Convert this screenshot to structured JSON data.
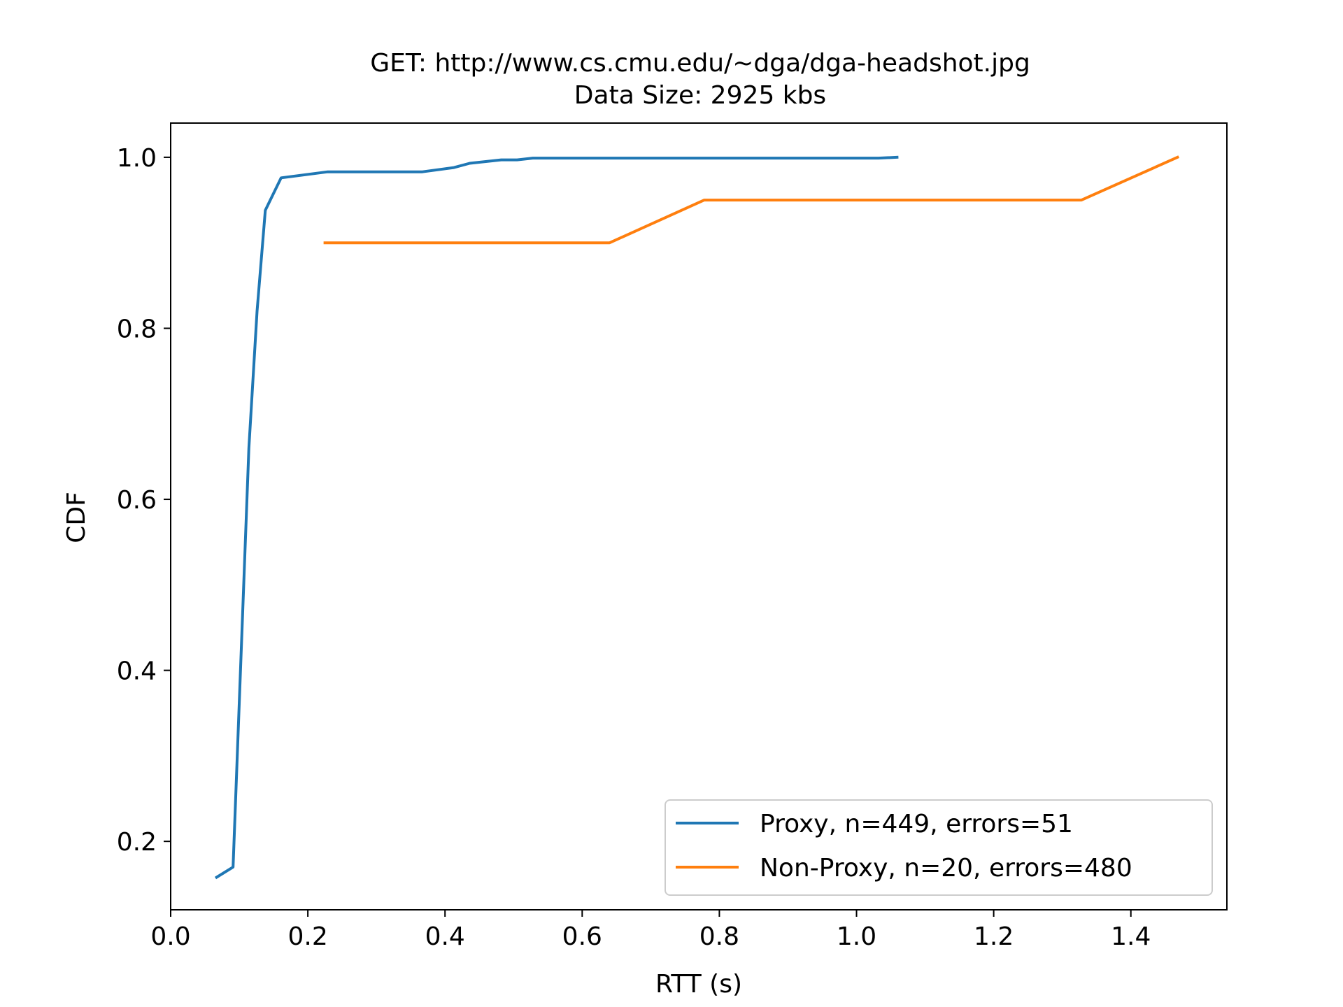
{
  "chart_data": {
    "type": "line",
    "title": "GET: http://www.cs.cmu.edu/~dga/dga-headshot.jpg",
    "subtitle": "Data Size: 2925 kbs",
    "xlabel": "RTT (s)",
    "ylabel": "CDF",
    "xlim": [
      0.0,
      1.54
    ],
    "ylim": [
      0.12,
      1.04
    ],
    "xticks": [
      "0.0",
      "0.2",
      "0.4",
      "0.6",
      "0.8",
      "1.0",
      "1.2",
      "1.4"
    ],
    "yticks": [
      "0.2",
      "0.4",
      "0.6",
      "0.8",
      "1.0"
    ],
    "grid": false,
    "legend_position": "lower-right",
    "series": [
      {
        "name": "Proxy, n=449, errors=51",
        "color": "#1f77b4",
        "x": [
          0.067,
          0.091,
          0.114,
          0.126,
          0.138,
          0.161,
          0.229,
          0.367,
          0.413,
          0.436,
          0.482,
          0.505,
          0.528,
          1.032,
          1.059
        ],
        "y": [
          0.158,
          0.17,
          0.66,
          0.82,
          0.938,
          0.976,
          0.983,
          0.983,
          0.988,
          0.993,
          0.997,
          0.997,
          0.999,
          0.999,
          1.0
        ]
      },
      {
        "name": "Non-Proxy, n=20, errors=480",
        "color": "#ff7f0e",
        "x": [
          0.225,
          0.64,
          0.778,
          1.328,
          1.468
        ],
        "y": [
          0.9,
          0.9,
          0.95,
          0.95,
          1.0
        ]
      }
    ]
  }
}
